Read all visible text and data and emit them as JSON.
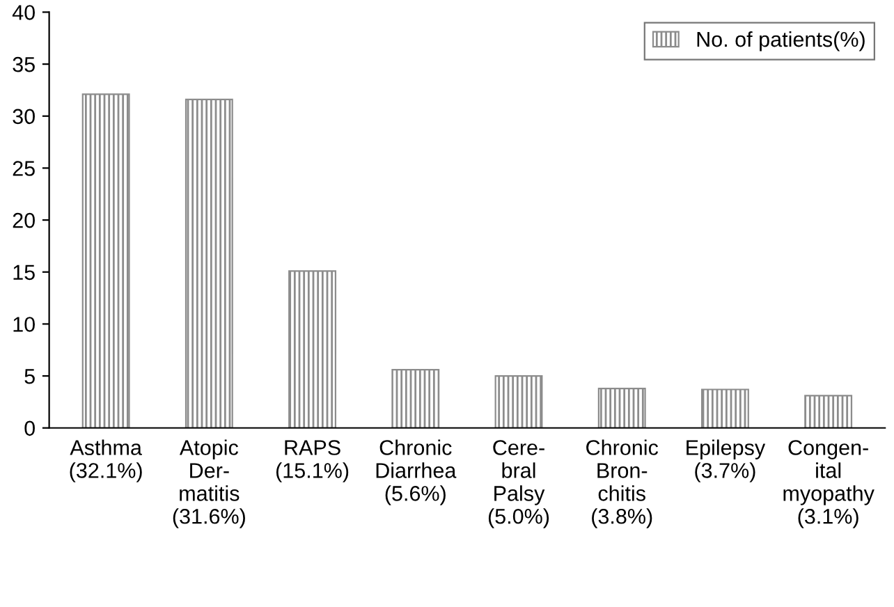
{
  "chart_data": {
    "type": "bar",
    "categories": [
      "Asthma\n(32.1%)",
      "Atopic\nDer-\nmatitis\n(31.6%)",
      "RAPS\n(15.1%)",
      "Chronic\nDiarrhea\n(5.6%)",
      "Cere-\nbral\nPalsy\n(5.0%)",
      "Chronic\nBron-\nchitis\n(3.8%)",
      "Epilepsy\n(3.7%)",
      "Congen-\nital\nmyopathy\n(3.1%)"
    ],
    "series": [
      {
        "name": "No. of patients(%)",
        "color": "#8c8c8c",
        "values": [
          32.1,
          31.6,
          15.1,
          5.6,
          5.0,
          3.8,
          3.7,
          3.1
        ]
      }
    ],
    "ylim": [
      0,
      40
    ],
    "yticks": [
      0,
      5,
      10,
      15,
      20,
      25,
      30,
      35,
      40
    ],
    "legend": "top right",
    "grid": false
  }
}
